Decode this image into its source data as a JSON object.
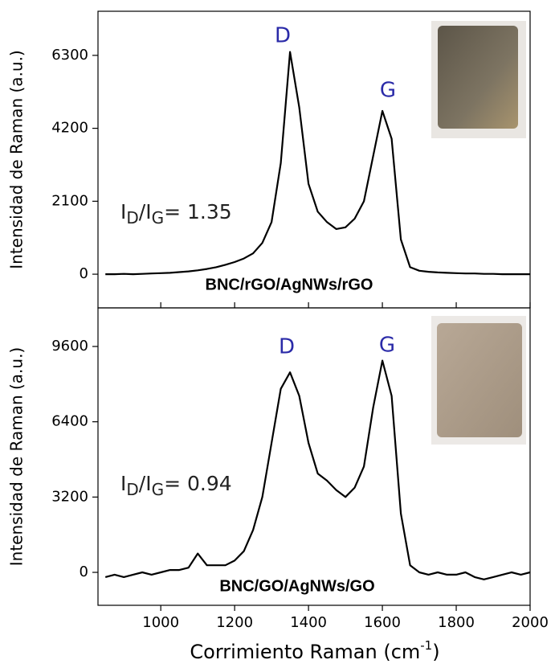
{
  "chart_data": [
    {
      "type": "line",
      "y_label": "Intensidad de Raman (a.u.)",
      "annotations": [
        "D",
        "G"
      ],
      "ratio_label": [
        "I",
        "D",
        "/I",
        "G",
        "= 1.35"
      ],
      "sample_label": "BNC/rGO/AgNWs/rGO",
      "color": "#000000",
      "x": [
        850,
        875,
        900,
        925,
        950,
        975,
        1000,
        1025,
        1050,
        1075,
        1100,
        1125,
        1150,
        1175,
        1200,
        1225,
        1250,
        1275,
        1300,
        1325,
        1350,
        1375,
        1400,
        1425,
        1450,
        1475,
        1500,
        1525,
        1550,
        1575,
        1600,
        1625,
        1650,
        1675,
        1700,
        1725,
        1750,
        1775,
        1800,
        1825,
        1850,
        1875,
        1900,
        1925,
        1950,
        1975,
        2000
      ],
      "values": [
        0,
        0,
        10,
        0,
        10,
        20,
        30,
        40,
        60,
        80,
        110,
        150,
        200,
        270,
        350,
        450,
        600,
        900,
        1500,
        3200,
        6400,
        4800,
        2600,
        1800,
        1500,
        1300,
        1350,
        1600,
        2100,
        3400,
        4700,
        3900,
        1000,
        200,
        100,
        70,
        50,
        40,
        30,
        20,
        20,
        10,
        10,
        0,
        0,
        0,
        0
      ],
      "xlim": [
        830,
        2000
      ],
      "xticks": [
        1000,
        1200,
        1400,
        1600,
        1800,
        2000
      ],
      "ylim": [
        -970,
        7570
      ],
      "yticks": [
        0,
        2100,
        4200,
        6300
      ]
    },
    {
      "type": "line",
      "y_label": "Intensidad de Raman (a.u.)",
      "annotations": [
        "D",
        "G"
      ],
      "ratio_label": [
        "I",
        "D",
        "/I",
        "G",
        "= 0.94"
      ],
      "sample_label": "BNC/GO/AgNWs/GO",
      "color": "#000000",
      "x_label": [
        "Corrimiento Raman (cm",
        "-1",
        ")"
      ],
      "x": [
        850,
        875,
        900,
        925,
        950,
        975,
        1000,
        1025,
        1050,
        1075,
        1100,
        1125,
        1150,
        1175,
        1200,
        1225,
        1250,
        1275,
        1300,
        1325,
        1350,
        1375,
        1400,
        1425,
        1450,
        1475,
        1500,
        1525,
        1550,
        1575,
        1600,
        1625,
        1650,
        1675,
        1700,
        1725,
        1750,
        1775,
        1800,
        1825,
        1850,
        1875,
        1900,
        1925,
        1950,
        1975,
        2000
      ],
      "values": [
        -200,
        -100,
        -200,
        -100,
        0,
        -100,
        0,
        100,
        100,
        200,
        800,
        300,
        300,
        300,
        500,
        900,
        1800,
        3200,
        5500,
        7800,
        8500,
        7500,
        5500,
        4200,
        3900,
        3500,
        3200,
        3600,
        4500,
        7000,
        9000,
        7500,
        2500,
        300,
        0,
        -100,
        0,
        -100,
        -100,
        0,
        -200,
        -300,
        -200,
        -100,
        0,
        -100,
        0
      ],
      "xlim": [
        830,
        2000
      ],
      "xticks": [
        1000,
        1200,
        1400,
        1600,
        1800,
        2000
      ],
      "ylim": [
        -1400,
        11240
      ],
      "yticks": [
        0,
        3200,
        6400,
        9600
      ]
    }
  ]
}
